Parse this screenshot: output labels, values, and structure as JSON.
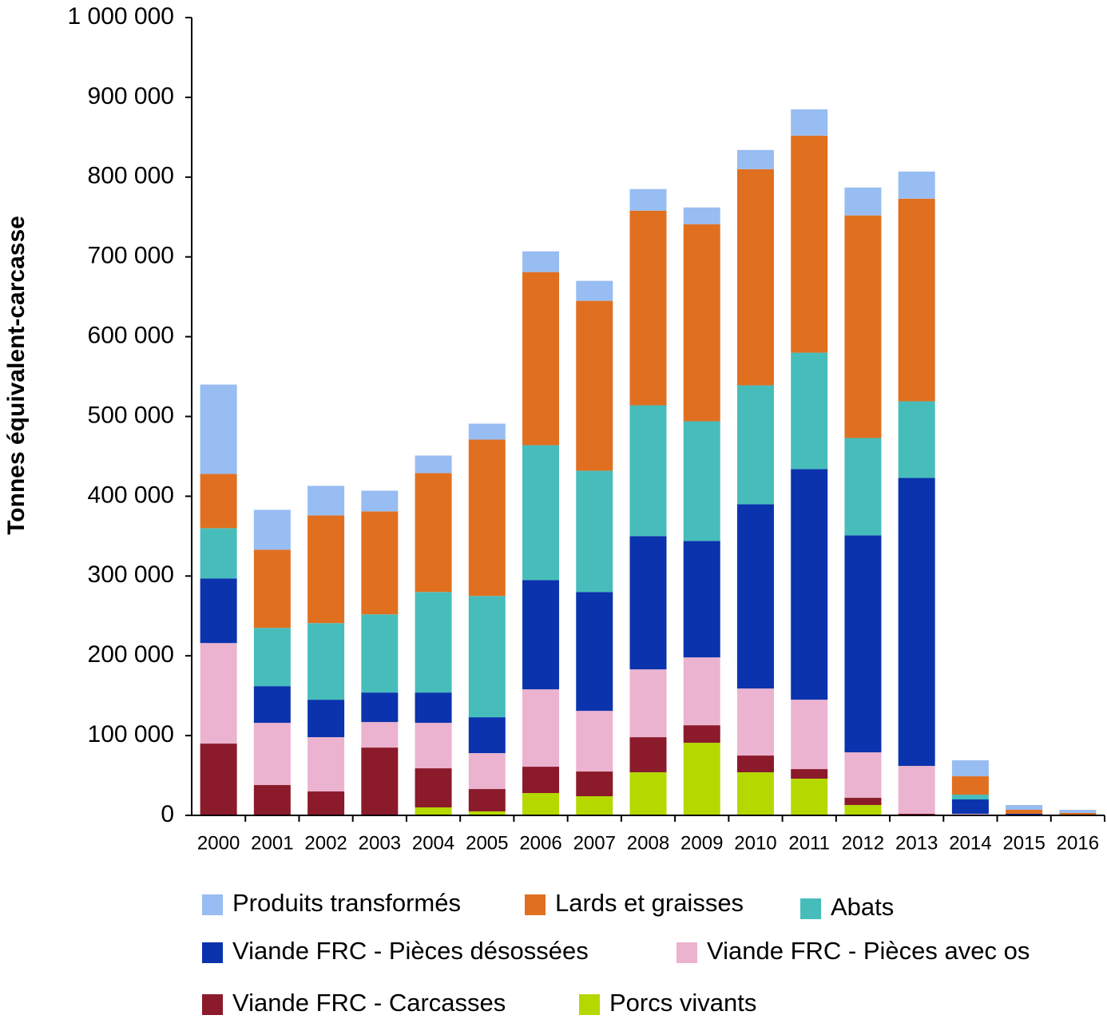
{
  "chart_data": {
    "type": "bar",
    "stacked": true,
    "y_label": "Tonnes équivalent-carcasse",
    "categories": [
      "2000",
      "2001",
      "2002",
      "2003",
      "2004",
      "2005",
      "2006",
      "2007",
      "2008",
      "2009",
      "2010",
      "2011",
      "2012",
      "2013",
      "2014",
      "2015",
      "2016"
    ],
    "ylim": [
      0,
      1000000
    ],
    "yticks": [
      0,
      {
        "value": 100000,
        "label": "100 000"
      },
      {
        "value": 200000,
        "label": "200 000"
      },
      {
        "value": 300000,
        "label": "300 000"
      },
      {
        "value": 400000,
        "label": "400 000"
      },
      {
        "value": 500000,
        "label": "500 000"
      },
      {
        "value": 600000,
        "label": "600 000"
      },
      {
        "value": 700000,
        "label": "700 000"
      },
      {
        "value": 800000,
        "label": "800 000"
      },
      {
        "value": 900000,
        "label": "900 000"
      },
      {
        "value": 1000000,
        "label": "1 000 000"
      }
    ],
    "series": [
      {
        "name": "Porcs vivants",
        "color": "#b5d900",
        "values": [
          0,
          0,
          0,
          0,
          10000,
          5000,
          28000,
          24000,
          54000,
          91000,
          54000,
          46000,
          13000,
          0,
          0,
          0,
          0
        ]
      },
      {
        "name": "Viande FRC - Carcasses",
        "color": "#8b1a2b",
        "values": [
          90000,
          38000,
          30000,
          85000,
          49000,
          28000,
          33000,
          31000,
          44000,
          22000,
          21000,
          12000,
          9000,
          2000,
          0,
          0,
          0
        ]
      },
      {
        "name": "Viande FRC - Pièces avec os",
        "color": "#ebb3cf",
        "values": [
          126000,
          78000,
          68000,
          32000,
          57000,
          45000,
          97000,
          76000,
          85000,
          85000,
          84000,
          87000,
          57000,
          60000,
          2000,
          1000,
          0
        ]
      },
      {
        "name": "Viande FRC - Pièces désossées",
        "color": "#0a33ad",
        "values": [
          81000,
          46000,
          47000,
          37000,
          38000,
          45000,
          137000,
          149000,
          167000,
          146000,
          231000,
          289000,
          272000,
          361000,
          18000,
          1000,
          0
        ]
      },
      {
        "name": "Abats",
        "color": "#47bdbb",
        "values": [
          63000,
          73000,
          96000,
          98000,
          126000,
          152000,
          169000,
          152000,
          164000,
          150000,
          149000,
          146000,
          122000,
          96000,
          6000,
          0,
          0
        ]
      },
      {
        "name": "Lards et graisses",
        "color": "#e07020",
        "values": [
          68000,
          98000,
          135000,
          129000,
          149000,
          196000,
          217000,
          213000,
          244000,
          247000,
          271000,
          272000,
          279000,
          254000,
          23000,
          5000,
          3000
        ]
      },
      {
        "name": "Produits transformés",
        "color": "#97bdf2",
        "values": [
          112000,
          50000,
          37000,
          26000,
          22000,
          20000,
          26000,
          25000,
          27000,
          21000,
          24000,
          33000,
          35000,
          34000,
          20000,
          6000,
          4000
        ]
      }
    ]
  }
}
